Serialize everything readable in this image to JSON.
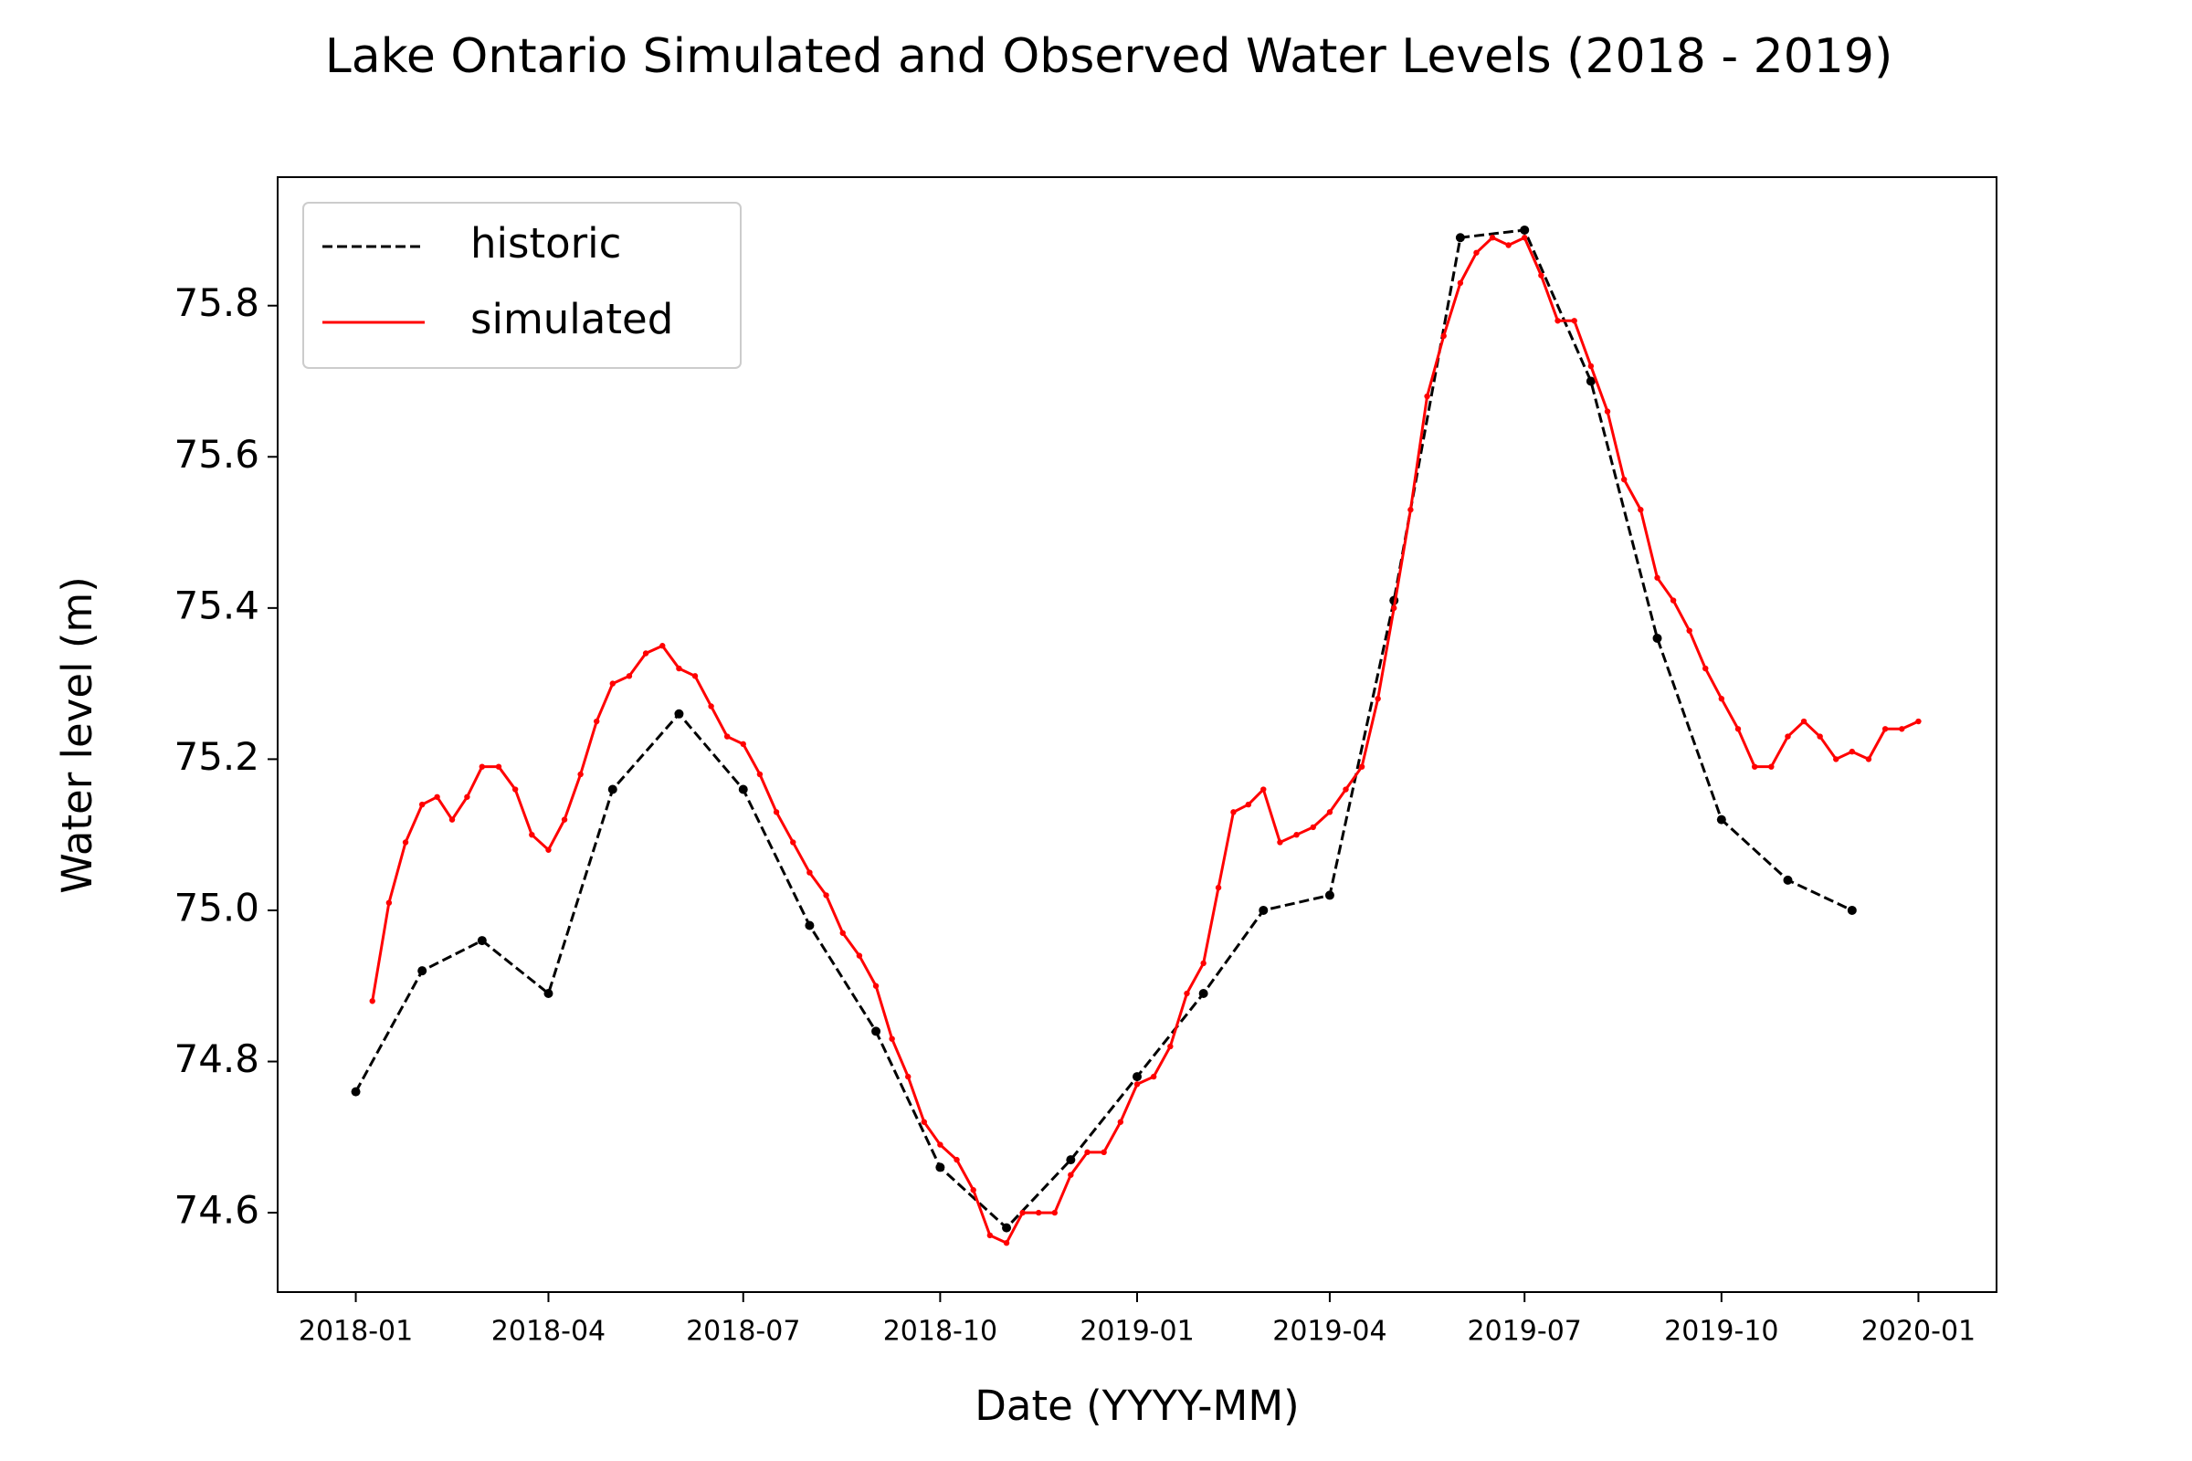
{
  "chart_data": {
    "type": "line",
    "title": "Lake Ontario Simulated and Observed Water Levels (2018 - 2019)",
    "x_label": "Date (YYYY-MM)",
    "y_label": "Water level (m)",
    "ylim": [
      74.495,
      75.97
    ],
    "yticks": [
      {
        "value": 74.6,
        "label": "74.6"
      },
      {
        "value": 74.8,
        "label": "74.8"
      },
      {
        "value": 75.0,
        "label": "75.0"
      },
      {
        "value": 75.2,
        "label": "75.2"
      },
      {
        "value": 75.4,
        "label": "75.4"
      },
      {
        "value": 75.6,
        "label": "75.6"
      },
      {
        "value": 75.8,
        "label": "75.8"
      }
    ],
    "xticks": [
      "2018-01",
      "2018-04",
      "2018-07",
      "2018-10",
      "2019-01",
      "2019-04",
      "2019-07",
      "2019-10",
      "2020-01"
    ],
    "legend": "upper left",
    "series": [
      {
        "name": "historic",
        "color": "#000000",
        "style": "dashed",
        "x": [
          "2018-01",
          "2018-02",
          "2018-03",
          "2018-04",
          "2018-05",
          "2018-06",
          "2018-07",
          "2018-08",
          "2018-09",
          "2018-10",
          "2018-11",
          "2018-12",
          "2019-01",
          "2019-02",
          "2019-03",
          "2019-04",
          "2019-05",
          "2019-06",
          "2019-07",
          "2019-08",
          "2019-09",
          "2019-10",
          "2019-11",
          "2019-12"
        ],
        "values": [
          74.76,
          74.92,
          74.96,
          74.89,
          75.16,
          75.26,
          75.16,
          74.98,
          74.84,
          74.66,
          74.58,
          74.67,
          74.78,
          74.89,
          75.0,
          75.02,
          75.41,
          75.89,
          75.9,
          75.7,
          75.36,
          75.12,
          75.04,
          75.0
        ]
      },
      {
        "name": "simulated",
        "color": "#ff0000",
        "style": "solid",
        "x": [
          "2018-01",
          "2018-01",
          "2018-01",
          "2018-01",
          "2018-02",
          "2018-02",
          "2018-02",
          "2018-02",
          "2018-03",
          "2018-03",
          "2018-03",
          "2018-03",
          "2018-04",
          "2018-04",
          "2018-04",
          "2018-04",
          "2018-05",
          "2018-05",
          "2018-05",
          "2018-05",
          "2018-06",
          "2018-06",
          "2018-06",
          "2018-06",
          "2018-07",
          "2018-07",
          "2018-07",
          "2018-07",
          "2018-08",
          "2018-08",
          "2018-08",
          "2018-08",
          "2018-09",
          "2018-09",
          "2018-09",
          "2018-09",
          "2018-10",
          "2018-10",
          "2018-10",
          "2018-10",
          "2018-11",
          "2018-11",
          "2018-11",
          "2018-11",
          "2018-12",
          "2018-12",
          "2018-12",
          "2018-12",
          "2019-01",
          "2019-01",
          "2019-01",
          "2019-01",
          "2019-02",
          "2019-02",
          "2019-02",
          "2019-02",
          "2019-03",
          "2019-03",
          "2019-03",
          "2019-03",
          "2019-04",
          "2019-04",
          "2019-04",
          "2019-04",
          "2019-05",
          "2019-05",
          "2019-05",
          "2019-05",
          "2019-06",
          "2019-06",
          "2019-06",
          "2019-06",
          "2019-07",
          "2019-07",
          "2019-07",
          "2019-07",
          "2019-08",
          "2019-08",
          "2019-08",
          "2019-08",
          "2019-09",
          "2019-09",
          "2019-09",
          "2019-09",
          "2019-10",
          "2019-10",
          "2019-10",
          "2019-10",
          "2019-11",
          "2019-11",
          "2019-11",
          "2019-11",
          "2019-12",
          "2019-12",
          "2019-12",
          "2019-12"
        ],
        "values": [
          74.88,
          75.01,
          75.09,
          75.14,
          75.15,
          75.12,
          75.15,
          75.19,
          75.19,
          75.16,
          75.1,
          75.08,
          75.12,
          75.18,
          75.25,
          75.3,
          75.31,
          75.34,
          75.35,
          75.32,
          75.31,
          75.27,
          75.23,
          75.22,
          75.18,
          75.13,
          75.09,
          75.05,
          75.02,
          74.97,
          74.94,
          74.9,
          74.83,
          74.78,
          74.72,
          74.69,
          74.67,
          74.63,
          74.57,
          74.56,
          74.6,
          74.6,
          74.6,
          74.65,
          74.68,
          74.68,
          74.72,
          74.77,
          74.78,
          74.82,
          74.89,
          74.93,
          75.03,
          75.13,
          75.14,
          75.16,
          75.09,
          75.1,
          75.11,
          75.13,
          75.16,
          75.19,
          75.28,
          75.4,
          75.53,
          75.68,
          75.76,
          75.83,
          75.87,
          75.89,
          75.88,
          75.89,
          75.84,
          75.78,
          75.78,
          75.72,
          75.66,
          75.57,
          75.53,
          75.44,
          75.41,
          75.37,
          75.32,
          75.28,
          75.24,
          75.19,
          75.19,
          75.23,
          75.25,
          75.23,
          75.2,
          75.21,
          75.2,
          75.24,
          75.24,
          75.25
        ]
      }
    ]
  }
}
